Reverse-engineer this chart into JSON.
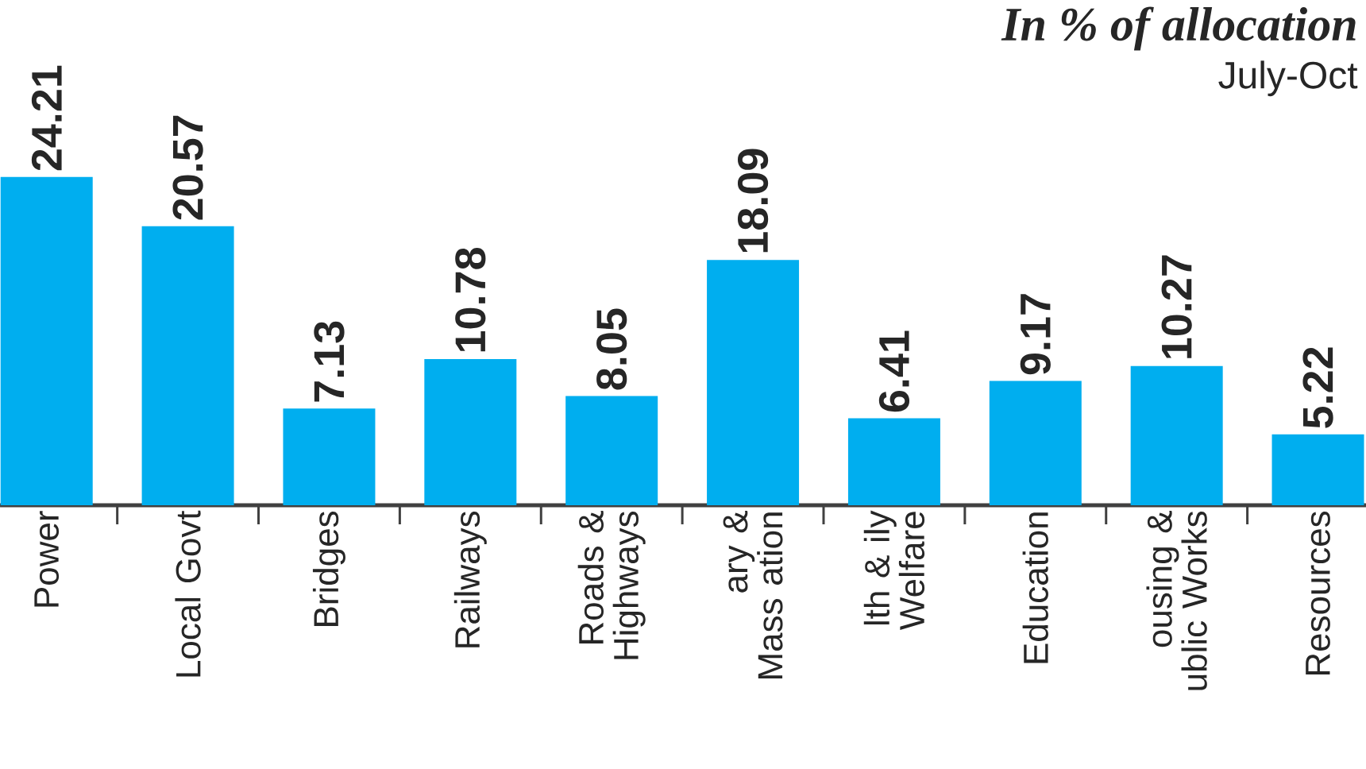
{
  "chart_data": {
    "type": "bar",
    "title": "In % of allocation",
    "subtitle": "July-Oct",
    "categories": [
      "Power",
      "Local Govt",
      "Bridges",
      "Railways",
      "Roads & Highways",
      "ary & Mass ation",
      "lth & ily Welfare",
      "Education",
      "ousing & ublic Works",
      "Resources"
    ],
    "values": [
      24.21,
      20.57,
      7.13,
      10.78,
      8.05,
      18.09,
      6.41,
      9.17,
      10.27,
      5.22
    ],
    "color": "#00aeef",
    "data_labels": true
  }
}
